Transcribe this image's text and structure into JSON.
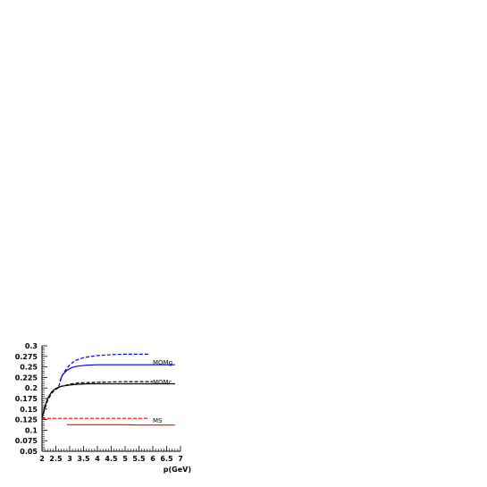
{
  "chart_data": {
    "type": "line",
    "title": "",
    "xlabel": "p(GeV)",
    "ylabel": "",
    "xlim": [
      2,
      7
    ],
    "ylim": [
      0.05,
      0.3
    ],
    "x_ticks": [
      "2",
      "2.5",
      "3",
      "3.5",
      "4",
      "4.5",
      "5",
      "5.5",
      "6",
      "6.5",
      "7"
    ],
    "y_ticks": [
      "0.05",
      "0.075",
      "0.1",
      "0.125",
      "0.15",
      "0.175",
      "0.2",
      "0.225",
      "0.25",
      "0.275",
      "0.3"
    ],
    "grid": false,
    "annotations": [
      "MOMg",
      "MOMc",
      "MS"
    ],
    "series": [
      {
        "color": "#0000cc",
        "style": "dashed",
        "x": [
          2.6,
          2.7,
          2.8,
          3.0,
          3.2,
          3.5,
          4.0,
          4.5,
          5.0,
          5.5,
          5.9
        ],
        "y": [
          0.203,
          0.225,
          0.238,
          0.255,
          0.265,
          0.272,
          0.277,
          0.279,
          0.28,
          0.28,
          0.28
        ]
      },
      {
        "color": "#0000cc",
        "style": "solid",
        "x": [
          2.65,
          2.75,
          2.9,
          3.1,
          3.3,
          3.6,
          4.0,
          4.5,
          5.0,
          5.5,
          6.0,
          6.5,
          6.8
        ],
        "y": [
          0.218,
          0.232,
          0.242,
          0.249,
          0.252,
          0.254,
          0.255,
          0.255,
          0.255,
          0.255,
          0.255,
          0.255,
          0.255
        ]
      },
      {
        "color": "#000000",
        "style": "dashed",
        "x": [
          2.0,
          2.1,
          2.2,
          2.35,
          2.5,
          2.7,
          3.0,
          3.3,
          3.7,
          4.2,
          5.0,
          5.5,
          6.0
        ],
        "y": [
          0.128,
          0.15,
          0.17,
          0.188,
          0.197,
          0.204,
          0.209,
          0.212,
          0.213,
          0.214,
          0.215,
          0.215,
          0.215
        ]
      },
      {
        "color": "#000000",
        "style": "solid",
        "x": [
          2.0,
          2.1,
          2.2,
          2.35,
          2.5,
          2.7,
          3.0,
          3.3,
          3.7,
          4.2,
          5.0,
          6.0,
          6.8
        ],
        "y": [
          0.128,
          0.155,
          0.175,
          0.191,
          0.199,
          0.204,
          0.207,
          0.209,
          0.21,
          0.21,
          0.21,
          0.21,
          0.21
        ]
      },
      {
        "color": "#ff0000",
        "style": "dashed",
        "x": [
          2.0,
          2.5,
          3.0,
          3.5,
          4.0,
          4.5,
          5.0,
          5.5,
          5.85
        ],
        "y": [
          0.128,
          0.128,
          0.128,
          0.128,
          0.128,
          0.128,
          0.128,
          0.128,
          0.128
        ]
      },
      {
        "color": "#ff0000",
        "style": "solid",
        "x": [
          2.9,
          3.5,
          4.0,
          4.5,
          5.0,
          5.5,
          6.0,
          6.5,
          6.8
        ],
        "y": [
          0.113,
          0.113,
          0.113,
          0.113,
          0.113,
          0.112,
          0.112,
          0.112,
          0.112
        ]
      }
    ]
  }
}
